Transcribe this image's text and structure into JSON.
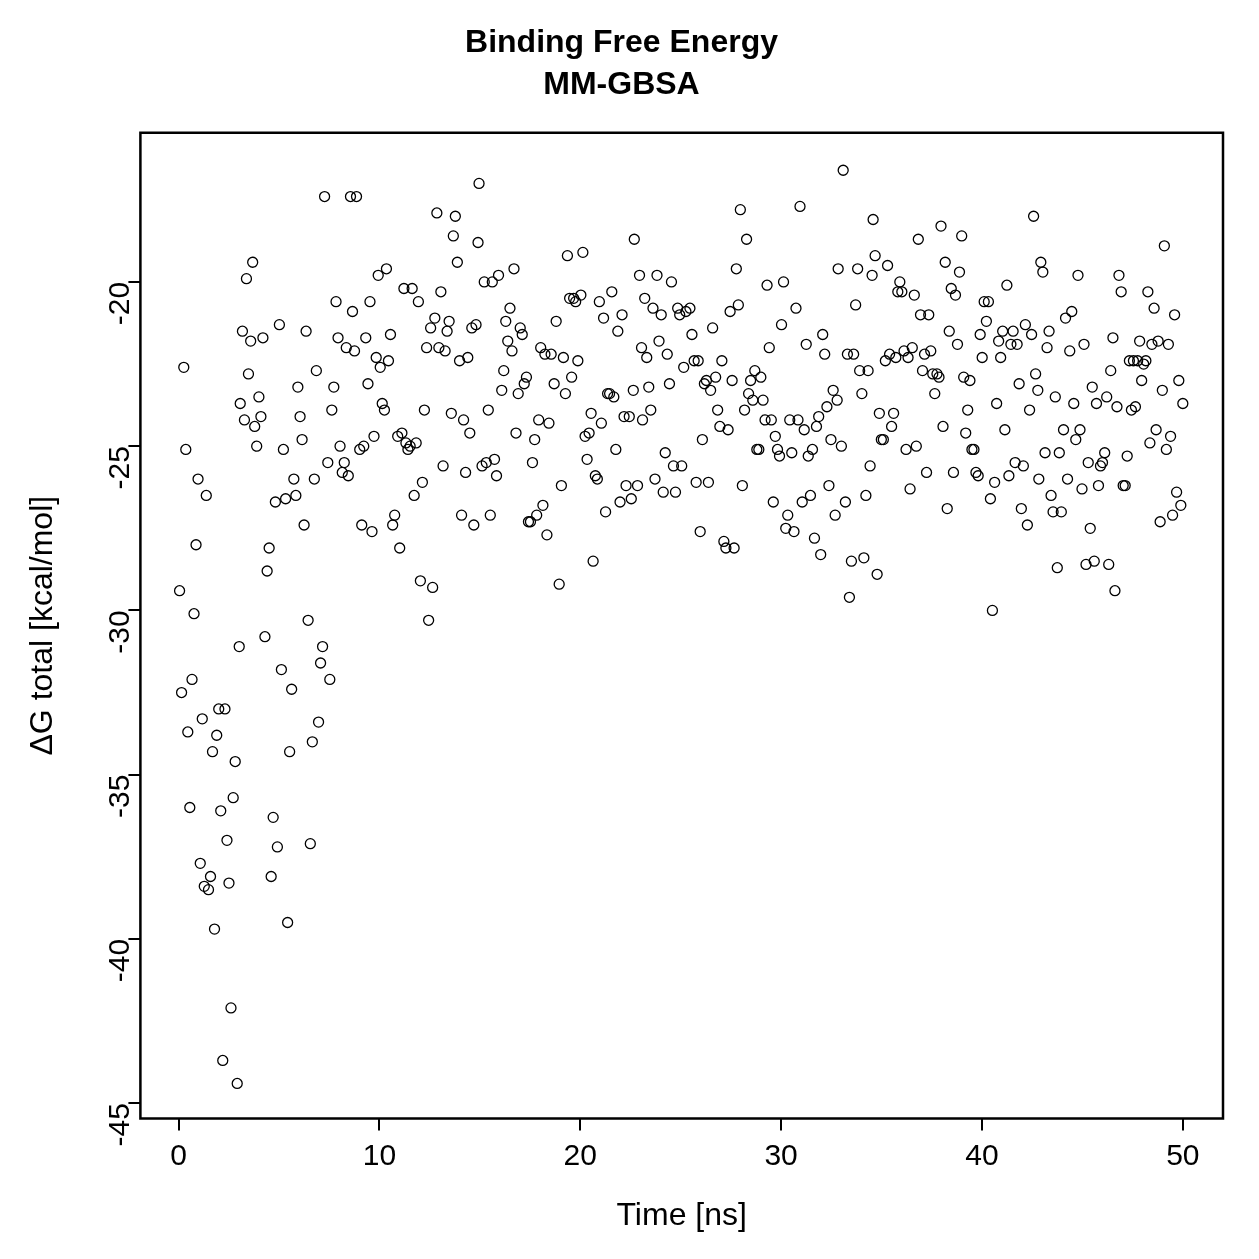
{
  "chart_data": {
    "type": "scatter",
    "title": "Binding Free Energy",
    "subtitle": "MM-GBSA",
    "xlabel": "Time [ns]",
    "ylabel": "ΔG total [kcal/mol]",
    "xlim": [
      -1.9,
      52
    ],
    "ylim": [
      -45.47,
      -15.46
    ],
    "xticks": [
      0,
      10,
      20,
      30,
      40,
      50
    ],
    "yticks": [
      -45,
      -40,
      -35,
      -30,
      -25,
      -20
    ],
    "grid": false,
    "legend": false,
    "marker": "circle",
    "series": [
      {
        "color": "#000000",
        "x": [
          0.05,
          0.15,
          0.26,
          0.36,
          0.46,
          0.56,
          0.67,
          0.77,
          0.87,
          0.97,
          1.08,
          1.18,
          1.28,
          1.38,
          1.49,
          1.59,
          1.69,
          1.79,
          1.9,
          2.0,
          2.1,
          2.2,
          2.31,
          2.41,
          2.51,
          2.61,
          2.72,
          2.82,
          2.92,
          3.02,
          3.07,
          3.18,
          3.28,
          3.38,
          3.48,
          3.59,
          3.69,
          3.79,
          3.89,
          4.0,
          4.1,
          4.2,
          4.3,
          4.41,
          4.51,
          4.61,
          4.71,
          4.82,
          4.92,
          5.02,
          5.12,
          5.22,
          5.33,
          5.43,
          5.53,
          5.63,
          5.74,
          5.84,
          5.94,
          6.05,
          6.15,
          6.25,
          6.35,
          6.45,
          6.56,
          6.66,
          6.76,
          6.86,
          6.97,
          7.07,
          7.17,
          7.27,
          7.43,
          7.53,
          7.63,
          7.73,
          7.84,
          7.94,
          8.04,
          8.15,
          8.25,
          8.35,
          8.45,
          8.56,
          8.66,
          8.76,
          8.86,
          9.02,
          9.12,
          9.22,
          9.32,
          9.43,
          9.53,
          9.63,
          9.73,
          9.84,
          9.94,
          10.04,
          10.14,
          10.25,
          10.35,
          10.45,
          10.55,
          10.66,
          10.76,
          10.91,
          11.01,
          11.12,
          11.22,
          11.32,
          11.42,
          11.53,
          11.63,
          11.73,
          11.83,
          11.94,
          12.04,
          12.14,
          12.24,
          12.35,
          12.45,
          12.55,
          12.65,
          12.76,
          12.86,
          12.96,
          13.06,
          13.17,
          13.27,
          13.37,
          13.47,
          13.58,
          13.68,
          13.78,
          13.88,
          13.99,
          14.09,
          14.19,
          14.29,
          14.4,
          14.5,
          14.6,
          14.7,
          14.81,
          14.91,
          14.96,
          15.11,
          15.22,
          15.32,
          15.42,
          15.52,
          15.62,
          15.73,
          15.83,
          15.93,
          16.09,
          16.19,
          16.29,
          16.39,
          16.5,
          16.6,
          16.7,
          16.8,
          16.91,
          17.01,
          17.11,
          17.21,
          17.32,
          17.42,
          17.52,
          17.62,
          17.73,
          17.83,
          17.93,
          18.03,
          18.14,
          18.24,
          18.34,
          18.44,
          18.55,
          18.7,
          18.8,
          18.95,
          19.06,
          19.16,
          19.26,
          19.36,
          19.47,
          19.57,
          19.67,
          19.77,
          19.88,
          20.03,
          20.13,
          20.24,
          20.34,
          20.44,
          20.54,
          20.64,
          20.75,
          20.85,
          20.95,
          21.05,
          21.16,
          21.26,
          21.36,
          21.46,
          21.57,
          21.67,
          21.77,
          21.87,
          21.98,
          22.08,
          22.18,
          22.28,
          22.44,
          22.54,
          22.64,
          22.69,
          22.85,
          22.95,
          23.05,
          23.1,
          23.21,
          23.31,
          23.41,
          23.51,
          23.62,
          23.72,
          23.82,
          23.92,
          24.03,
          24.13,
          24.23,
          24.33,
          24.44,
          24.54,
          24.64,
          24.74,
          24.85,
          24.95,
          25.05,
          25.15,
          25.26,
          25.46,
          25.56,
          25.67,
          25.77,
          25.87,
          25.97,
          26.08,
          26.18,
          26.28,
          26.38,
          26.49,
          26.59,
          26.74,
          26.84,
          26.95,
          27.05,
          27.15,
          27.25,
          27.36,
          27.46,
          27.56,
          27.66,
          27.77,
          27.87,
          27.97,
          28.07,
          28.18,
          28.28,
          28.38,
          28.48,
          28.59,
          28.69,
          28.79,
          28.89,
          28.99,
          29.1,
          29.2,
          29.3,
          29.41,
          29.51,
          29.61,
          29.71,
          29.82,
          29.92,
          30.02,
          30.12,
          30.23,
          30.33,
          30.43,
          30.53,
          30.64,
          30.74,
          30.84,
          30.94,
          31.05,
          31.15,
          31.25,
          31.35,
          31.46,
          31.56,
          31.66,
          31.76,
          31.87,
          31.97,
          32.07,
          32.17,
          32.28,
          32.38,
          32.48,
          32.59,
          32.69,
          32.79,
          32.84,
          33.0,
          33.09,
          33.2,
          33.3,
          33.4,
          33.5,
          33.61,
          33.71,
          33.81,
          33.91,
          34.02,
          34.12,
          34.22,
          34.33,
          34.43,
          34.53,
          34.58,
          34.68,
          34.78,
          34.89,
          34.99,
          35.09,
          35.19,
          35.3,
          35.4,
          35.5,
          35.6,
          35.71,
          35.81,
          35.91,
          36.01,
          36.12,
          36.22,
          36.32,
          36.42,
          36.53,
          36.63,
          36.73,
          36.83,
          36.94,
          37.04,
          37.14,
          37.24,
          37.35,
          37.45,
          37.55,
          37.65,
          37.76,
          37.86,
          37.96,
          38.06,
          38.17,
          38.27,
          38.37,
          38.47,
          38.58,
          38.68,
          38.78,
          38.88,
          38.99,
          39.09,
          39.19,
          39.29,
          39.4,
          39.5,
          39.6,
          39.7,
          39.81,
          39.91,
          40.01,
          40.11,
          40.22,
          40.32,
          40.42,
          40.52,
          40.63,
          40.73,
          40.83,
          40.93,
          41.03,
          41.14,
          41.24,
          41.34,
          41.44,
          41.55,
          41.65,
          41.75,
          41.85,
          41.96,
          42.06,
          42.16,
          42.26,
          42.37,
          42.47,
          42.57,
          42.67,
          42.78,
          42.83,
          42.93,
          43.03,
          43.14,
          43.24,
          43.34,
          43.44,
          43.54,
          43.65,
          43.75,
          43.85,
          43.95,
          44.06,
          44.16,
          44.26,
          44.37,
          44.47,
          44.57,
          44.67,
          44.78,
          44.88,
          44.98,
          45.08,
          45.18,
          45.29,
          45.39,
          45.49,
          45.59,
          45.7,
          45.8,
          45.9,
          46.0,
          46.11,
          46.21,
          46.31,
          46.41,
          46.52,
          46.62,
          46.72,
          46.82,
          46.93,
          47.03,
          47.13,
          47.23,
          47.34,
          47.44,
          47.54,
          47.64,
          47.75,
          47.85,
          47.95,
          48.05,
          48.16,
          48.26,
          48.36,
          48.46,
          48.57,
          48.67,
          48.77,
          48.87,
          48.98,
          49.08,
          49.18,
          49.28,
          49.39,
          49.49,
          49.59,
          49.69,
          49.8,
          49.9,
          50.0
        ],
        "values": [
          -29.4,
          -32.5,
          -22.6,
          -25.1,
          -33.7,
          -36.0,
          -32.1,
          -30.1,
          -28.0,
          -26.0,
          -37.7,
          -33.3,
          -38.4,
          -26.5,
          -38.5,
          -38.1,
          -34.3,
          -39.7,
          -33.8,
          -33.0,
          -36.1,
          -43.7,
          -33.0,
          -37.0,
          -38.3,
          -42.1,
          -35.7,
          -34.6,
          -44.4,
          -31.1,
          -23.7,
          -21.5,
          -24.2,
          -19.9,
          -22.8,
          -21.8,
          -19.4,
          -24.4,
          -25.0,
          -23.5,
          -24.1,
          -21.7,
          -30.8,
          -28.8,
          -28.1,
          -38.1,
          -36.3,
          -26.7,
          -37.2,
          -21.3,
          -31.8,
          -25.1,
          -26.6,
          -39.5,
          -34.3,
          -32.4,
          -26.0,
          -26.5,
          -23.2,
          -24.1,
          -24.8,
          -27.4,
          -21.5,
          -30.3,
          -37.1,
          -34.0,
          -26.0,
          -22.7,
          -33.4,
          -31.6,
          -31.1,
          -17.4,
          -25.5,
          -32.1,
          -23.9,
          -23.2,
          -20.6,
          -21.7,
          -25.0,
          -25.8,
          -25.5,
          -22.0,
          -25.9,
          -17.4,
          -20.9,
          -22.1,
          -17.4,
          -25.1,
          -27.4,
          -25.0,
          -21.7,
          -23.1,
          -20.6,
          -27.6,
          -24.7,
          -22.3,
          -19.8,
          -22.6,
          -23.7,
          -23.9,
          -19.6,
          -22.4,
          -21.6,
          -27.4,
          -27.1,
          -24.7,
          -28.1,
          -24.6,
          -20.2,
          -24.9,
          -25.1,
          -25.0,
          -20.2,
          -26.5,
          -24.9,
          -20.6,
          -29.1,
          -26.1,
          -23.9,
          -22.0,
          -30.3,
          -21.4,
          -29.3,
          -21.1,
          -17.9,
          -22.0,
          -20.3,
          -25.6,
          -22.1,
          -21.5,
          -21.2,
          -24.0,
          -18.6,
          -18.0,
          -19.4,
          -22.4,
          -27.1,
          -24.2,
          -25.8,
          -22.3,
          -24.6,
          -21.4,
          -27.4,
          -21.3,
          -18.8,
          -17.0,
          -25.6,
          -20.0,
          -25.5,
          -23.9,
          -27.1,
          -20.0,
          -25.4,
          -25.9,
          -19.8,
          -23.3,
          -22.7,
          -21.2,
          -21.8,
          -20.8,
          -22.1,
          -19.6,
          -24.6,
          -23.4,
          -21.4,
          -21.6,
          -23.1,
          -22.9,
          -27.3,
          -27.3,
          -25.5,
          -24.8,
          -27.1,
          -24.2,
          -22.0,
          -26.8,
          -22.2,
          -27.7,
          -24.3,
          -22.2,
          -23.1,
          -21.2,
          -29.2,
          -26.2,
          -22.3,
          -23.4,
          -19.2,
          -20.5,
          -22.9,
          -20.5,
          -20.6,
          -22.4,
          -20.4,
          -19.1,
          -24.7,
          -25.4,
          -24.6,
          -24.0,
          -28.5,
          -25.9,
          -26.0,
          -20.6,
          -24.3,
          -21.1,
          -27.0,
          -23.4,
          -23.4,
          -20.3,
          -23.5,
          -25.1,
          -21.5,
          -26.7,
          -21.0,
          -24.1,
          -26.2,
          -24.1,
          -26.6,
          -23.3,
          -18.7,
          -26.2,
          -19.8,
          -22.0,
          -24.2,
          -20.5,
          -22.3,
          -23.2,
          -23.9,
          -20.8,
          -26.0,
          -19.8,
          -21.8,
          -21.0,
          -26.4,
          -25.2,
          -22.2,
          -23.1,
          -20.0,
          -25.6,
          -26.4,
          -20.8,
          -21.0,
          -25.6,
          -22.6,
          -20.9,
          -20.8,
          -21.6,
          -22.4,
          -26.1,
          -22.4,
          -27.6,
          -24.8,
          -23.1,
          -23.0,
          -26.1,
          -23.3,
          -21.4,
          -22.9,
          -23.9,
          -24.4,
          -22.4,
          -27.9,
          -28.1,
          -24.5,
          -20.9,
          -23.0,
          -28.1,
          -19.6,
          -20.7,
          -17.8,
          -26.2,
          -23.9,
          -18.7,
          -23.4,
          -23.0,
          -23.6,
          -22.7,
          -25.1,
          -25.1,
          -22.9,
          -23.6,
          -24.2,
          -20.1,
          -22.0,
          -24.2,
          -26.7,
          -24.7,
          -25.1,
          -25.3,
          -21.3,
          -20.0,
          -27.5,
          -27.1,
          -24.2,
          -25.2,
          -27.6,
          -20.8,
          -24.2,
          -17.7,
          -26.7,
          -24.5,
          -21.9,
          -25.3,
          -26.5,
          -25.1,
          -27.8,
          -24.4,
          -24.1,
          -28.3,
          -21.6,
          -22.2,
          -23.8,
          -26.2,
          -24.8,
          -23.3,
          -27.1,
          -23.6,
          -19.6,
          -25.0,
          -16.6,
          -26.7,
          -22.2,
          -29.6,
          -28.5,
          -22.2,
          -20.7,
          -19.6,
          -22.7,
          -23.4,
          -28.4,
          -26.5,
          -22.7,
          -25.6,
          -19.8,
          -18.1,
          -19.2,
          -28.9,
          -24.0,
          -24.8,
          -24.8,
          -22.4,
          -19.5,
          -22.2,
          -24.4,
          -24.0,
          -22.3,
          -20.3,
          -20.0,
          -20.3,
          -22.1,
          -25.1,
          -22.3,
          -26.3,
          -22.0,
          -20.4,
          -25.0,
          -18.7,
          -21.0,
          -22.7,
          -22.2,
          -25.8,
          -21.0,
          -22.1,
          -22.8,
          -23.4,
          -22.8,
          -22.9,
          -18.3,
          -24.4,
          -19.4,
          -26.9,
          -21.5,
          -20.2,
          -25.8,
          -20.4,
          -21.9,
          -19.7,
          -18.6,
          -22.9,
          -24.6,
          -23.9,
          -23.0,
          -25.1,
          -25.1,
          -25.8,
          -25.9,
          -21.6,
          -22.3,
          -20.6,
          -21.2,
          -20.6,
          -26.6,
          -30.0,
          -26.1,
          -23.7,
          -21.8,
          -22.3,
          -21.5,
          -24.5,
          -20.1,
          -25.9,
          -21.9,
          -21.5,
          -25.5,
          -21.9,
          -23.1,
          -26.9,
          -25.6,
          -21.3,
          -27.4,
          -23.9,
          -21.6,
          -18.0,
          -22.8,
          -23.3,
          -26.0,
          -19.4,
          -19.7,
          -25.2,
          -22.0,
          -21.5,
          -26.5,
          -27.0,
          -23.5,
          -28.7,
          -25.2,
          -27.0,
          -24.5,
          -21.1,
          -26.0,
          -22.1,
          -20.9,
          -23.7,
          -24.8,
          -19.8,
          -24.5,
          -26.3,
          -21.9,
          -28.6,
          -25.5,
          -27.5,
          -23.2,
          -28.5,
          -23.7,
          -26.2,
          -25.6,
          -25.5,
          -25.2,
          -23.5,
          -28.6,
          -22.7,
          -21.7,
          -29.4,
          -23.8,
          -19.8,
          -20.3,
          -26.2,
          -26.2,
          -25.3,
          -22.4,
          -23.9,
          -22.4,
          -23.8,
          -22.4,
          -21.8,
          -23.0,
          -22.5,
          -22.4,
          -20.3,
          -24.9,
          -21.9,
          -20.8,
          -24.5,
          -21.8,
          -27.3,
          -23.3,
          -18.9,
          -25.1,
          -21.9,
          -24.7,
          -27.1,
          -21.0,
          -26.4,
          -23.0,
          -26.8,
          -23.7
        ]
      }
    ]
  }
}
